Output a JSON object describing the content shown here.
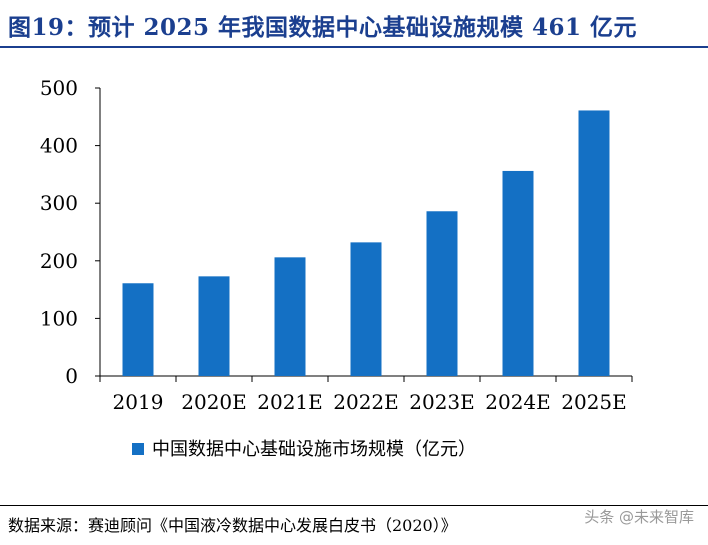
{
  "header": {
    "title": "图19：预计 2025 年我国数据中心基础设施规模 461 亿元"
  },
  "chart_data": {
    "type": "bar",
    "categories": [
      "2019",
      "2020E",
      "2021E",
      "2022E",
      "2023E",
      "2024E",
      "2025E"
    ],
    "series": [
      {
        "name": "中国数据中心基础设施市场规模（亿元）",
        "values": [
          161,
          173,
          206,
          232,
          286,
          356,
          461
        ]
      }
    ],
    "ylim": [
      0,
      500
    ],
    "yticks": [
      0,
      100,
      200,
      300,
      400,
      500
    ],
    "grid": false,
    "legend_position": "bottom",
    "bar_color": "#1470c4"
  },
  "footer": {
    "source": "数据来源：赛迪顾问《中国液冷数据中心发展白皮书（2020）》",
    "watermark": "头条 @未来智库"
  }
}
